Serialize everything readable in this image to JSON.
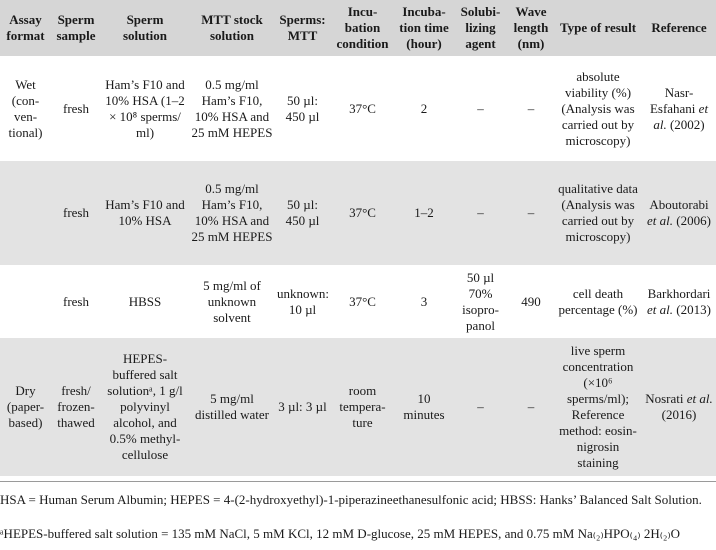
{
  "headers": [
    "Assay format",
    "Sperm sample",
    "Sperm solution",
    "MTT stock solution",
    "Sperms: MTT",
    "Incu-bation condition",
    "Incuba-tion time (hour)",
    "Solubi-lizing agent",
    "Wave length (nm)",
    "Type of result",
    "Reference"
  ],
  "rows": [
    {
      "assay": "Wet (con-ven-tional)",
      "sample": "fresh",
      "solution": "Ham’s F10 and 10% HSA (1–2 × 10⁸ sperms/ ml)",
      "mtt": "0.5 mg/ml Ham’s F10, 10% HSA and 25 mM HEPES",
      "ratio": "50 µl: 450 µl",
      "condition": "37°C",
      "time": "2",
      "agent": "–",
      "wave": "–",
      "result": "absolute viability (%) (Analysis was carried out by microscopy)",
      "ref_author": "Nasr-Esfahani",
      "ref_etal": "et al.",
      "ref_year": "(2002)"
    },
    {
      "assay": "",
      "sample": "fresh",
      "solution": "Ham’s F10 and 10% HSA",
      "mtt": "0.5 mg/ml Ham’s F10, 10% HSA and 25 mM HEPES",
      "ratio": "50 µl: 450 µl",
      "condition": "37°C",
      "time": "1–2",
      "agent": "–",
      "wave": "–",
      "result": "qualitative data (Analysis was carried out by microscopy)",
      "ref_author": "Aboutorabi",
      "ref_etal": "et al.",
      "ref_year": "(2006)"
    },
    {
      "assay": "",
      "sample": "fresh",
      "solution": "HBSS",
      "mtt": "5 mg/ml of unknown solvent",
      "ratio": "unknown: 10 µl",
      "condition": "37°C",
      "time": "3",
      "agent": "50 µl 70% isopro-panol",
      "wave": "490",
      "result": "cell death percentage (%)",
      "ref_author": "Barkhordari",
      "ref_etal": "et al.",
      "ref_year": "(2013)"
    },
    {
      "assay": "Dry (paper-based)",
      "sample": "fresh/ frozen-thawed",
      "solution": "HEPES-buffered salt solutionᵃ, 1 g/l polyvinyl alcohol, and 0.5% methyl-cellulose",
      "mtt": "5 mg/ml distilled water",
      "ratio": "3 µl: 3 µl",
      "condition": "room tempera-ture",
      "time": "10 minutes",
      "agent": "–",
      "wave": "–",
      "result": "live sperm concentration (×10⁶ sperms/ml); Reference method: eosin-nigrosin staining",
      "ref_author": "Nosrati",
      "ref_etal": "et al.",
      "ref_year": "(2016)"
    }
  ],
  "footnote1": "HSA = Human Serum Albumin; HEPES = 4-(2-hydroxyethyl)-1-piperazineethanesulfonic acid; HBSS: Hanks’ Balanced Salt Solution.",
  "footnote2": "ᵃHEPES-buffered salt solution = 135 mM NaCl, 5 mM KCl, 12 mM D-glucose, 25 mM HEPES, and 0.75 mM Na₍₂₎HPO₍₄₎ 2H₍₂₎O"
}
